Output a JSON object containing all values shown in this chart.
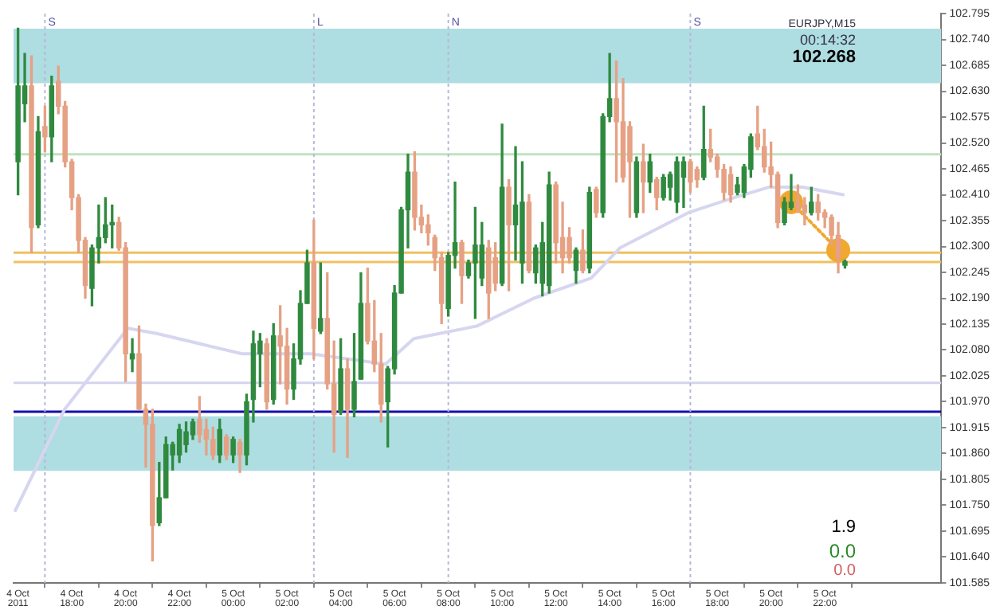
{
  "chart_data": {
    "type": "candlestick",
    "x": [
      "2011-10-04T16:00",
      "2011-10-04T16:15",
      "2011-10-04T16:30",
      "2011-10-04T16:45",
      "2011-10-04T17:00",
      "2011-10-04T17:15",
      "2011-10-04T17:30",
      "2011-10-04T17:45",
      "2011-10-04T18:00",
      "2011-10-04T18:15",
      "2011-10-04T18:30",
      "2011-10-04T18:45",
      "2011-10-04T19:00",
      "2011-10-04T19:15",
      "2011-10-04T19:30",
      "2011-10-04T19:45",
      "2011-10-04T20:00",
      "2011-10-04T20:15",
      "2011-10-04T20:30",
      "2011-10-04T20:45",
      "2011-10-04T21:00",
      "2011-10-04T21:15",
      "2011-10-04T21:30",
      "2011-10-04T21:45",
      "2011-10-04T22:00",
      "2011-10-04T22:15",
      "2011-10-04T22:30",
      "2011-10-04T22:45",
      "2011-10-04T23:00",
      "2011-10-04T23:15",
      "2011-10-04T23:30",
      "2011-10-04T23:45",
      "2011-10-05T00:00",
      "2011-10-05T00:15",
      "2011-10-05T00:30",
      "2011-10-05T00:45",
      "2011-10-05T01:00",
      "2011-10-05T01:15",
      "2011-10-05T01:30",
      "2011-10-05T01:45",
      "2011-10-05T02:00",
      "2011-10-05T02:15",
      "2011-10-05T02:30",
      "2011-10-05T02:45",
      "2011-10-05T03:00",
      "2011-10-05T03:15",
      "2011-10-05T03:30",
      "2011-10-05T03:45",
      "2011-10-05T04:00",
      "2011-10-05T04:15",
      "2011-10-05T04:30",
      "2011-10-05T04:45",
      "2011-10-05T05:00",
      "2011-10-05T05:15",
      "2011-10-05T05:30",
      "2011-10-05T05:45",
      "2011-10-05T06:00",
      "2011-10-05T06:15",
      "2011-10-05T06:30",
      "2011-10-05T06:45",
      "2011-10-05T07:00",
      "2011-10-05T07:15",
      "2011-10-05T07:30",
      "2011-10-05T07:45",
      "2011-10-05T08:00",
      "2011-10-05T08:15",
      "2011-10-05T08:30",
      "2011-10-05T08:45",
      "2011-10-05T09:00",
      "2011-10-05T09:15",
      "2011-10-05T09:30",
      "2011-10-05T09:45",
      "2011-10-05T10:00",
      "2011-10-05T10:15",
      "2011-10-05T10:30",
      "2011-10-05T10:45",
      "2011-10-05T11:00",
      "2011-10-05T11:15",
      "2011-10-05T11:30",
      "2011-10-05T11:45",
      "2011-10-05T12:00",
      "2011-10-05T12:15",
      "2011-10-05T12:30",
      "2011-10-05T12:45",
      "2011-10-05T13:00",
      "2011-10-05T13:15",
      "2011-10-05T13:30",
      "2011-10-05T13:45",
      "2011-10-05T14:00",
      "2011-10-05T14:15",
      "2011-10-05T14:30",
      "2011-10-05T14:45",
      "2011-10-05T15:00",
      "2011-10-05T15:15",
      "2011-10-05T15:30",
      "2011-10-05T15:45",
      "2011-10-05T16:00",
      "2011-10-05T16:15",
      "2011-10-05T16:30",
      "2011-10-05T16:45",
      "2011-10-05T17:00",
      "2011-10-05T17:15",
      "2011-10-05T17:30",
      "2011-10-05T17:45",
      "2011-10-05T18:00",
      "2011-10-05T18:15",
      "2011-10-05T18:30",
      "2011-10-05T18:45",
      "2011-10-05T19:00",
      "2011-10-05T19:15",
      "2011-10-05T19:30",
      "2011-10-05T19:45",
      "2011-10-05T20:00",
      "2011-10-05T20:15",
      "2011-10-05T20:30",
      "2011-10-05T20:45",
      "2011-10-05T21:00",
      "2011-10-05T21:15",
      "2011-10-05T21:30",
      "2011-10-05T21:45",
      "2011-10-05T22:00",
      "2011-10-05T22:15",
      "2011-10-05T22:30",
      "2011-10-05T22:45"
    ],
    "ohlc": [
      [
        102.48,
        102.764,
        102.41,
        102.641
      ],
      [
        102.603,
        102.71,
        102.565,
        102.641
      ],
      [
        102.641,
        102.705,
        102.287,
        102.34
      ],
      [
        102.346,
        102.576,
        102.34,
        102.544
      ],
      [
        102.555,
        102.598,
        102.501,
        102.533
      ],
      [
        102.533,
        102.662,
        102.48,
        102.641
      ],
      [
        102.651,
        102.683,
        102.582,
        102.598
      ],
      [
        102.598,
        102.608,
        102.469,
        102.48
      ],
      [
        102.48,
        102.485,
        102.378,
        102.404
      ],
      [
        102.404,
        102.41,
        102.287,
        102.313
      ],
      [
        102.313,
        102.319,
        102.19,
        102.217
      ],
      [
        102.211,
        102.303,
        102.174,
        102.297
      ],
      [
        102.297,
        102.388,
        102.265,
        102.319
      ],
      [
        102.319,
        102.404,
        102.308,
        102.346
      ],
      [
        102.346,
        102.388,
        102.297,
        102.351
      ],
      [
        102.351,
        102.362,
        102.292,
        102.297
      ],
      [
        102.297,
        102.308,
        102.013,
        102.072
      ],
      [
        102.061,
        102.104,
        102.034,
        102.072
      ],
      [
        102.072,
        102.131,
        101.954,
        101.954
      ],
      [
        101.954,
        101.965,
        101.831,
        101.922
      ],
      [
        101.922,
        101.954,
        101.632,
        101.707
      ],
      [
        101.713,
        101.841,
        101.707,
        101.766
      ],
      [
        101.766,
        101.895,
        101.766,
        101.879
      ],
      [
        101.857,
        101.884,
        101.825,
        101.879
      ],
      [
        101.857,
        101.922,
        101.841,
        101.911
      ],
      [
        101.879,
        101.927,
        101.863,
        101.906
      ],
      [
        101.9,
        101.933,
        101.89,
        101.927
      ],
      [
        101.933,
        101.981,
        101.884,
        101.9
      ],
      [
        101.911,
        101.933,
        101.857,
        101.89
      ],
      [
        101.89,
        101.916,
        101.847,
        101.857
      ],
      [
        101.857,
        101.933,
        101.841,
        101.911
      ],
      [
        101.895,
        101.9,
        101.847,
        101.857
      ],
      [
        101.857,
        101.895,
        101.841,
        101.89
      ],
      [
        101.884,
        101.89,
        101.82,
        101.857
      ],
      [
        101.857,
        101.986,
        101.836,
        101.97
      ],
      [
        101.975,
        102.12,
        101.927,
        102.093
      ],
      [
        102.072,
        102.115,
        102.002,
        102.099
      ],
      [
        102.093,
        102.104,
        101.954,
        101.97
      ],
      [
        101.975,
        102.136,
        101.965,
        102.11
      ],
      [
        102.11,
        102.174,
        102.008,
        102.088
      ],
      [
        102.088,
        102.126,
        101.965,
        101.997
      ],
      [
        101.997,
        102.093,
        101.975,
        102.061
      ],
      [
        102.061,
        102.206,
        102.05,
        102.179
      ],
      [
        102.179,
        102.292,
        102.179,
        102.265
      ],
      [
        102.265,
        102.356,
        102.061,
        102.126
      ],
      [
        102.12,
        102.265,
        102.115,
        102.147
      ],
      [
        102.147,
        102.244,
        101.997,
        102.008
      ],
      [
        102.008,
        102.099,
        101.863,
        101.943
      ],
      [
        101.949,
        102.104,
        101.943,
        102.04
      ],
      [
        102.04,
        102.061,
        101.852,
        101.954
      ],
      [
        101.954,
        102.115,
        101.938,
        102.013
      ],
      [
        102.018,
        102.244,
        102.018,
        102.179
      ],
      [
        102.179,
        102.254,
        102.093,
        102.099
      ],
      [
        102.099,
        102.185,
        102.034,
        102.05
      ],
      [
        102.05,
        102.115,
        101.927,
        101.965
      ],
      [
        101.97,
        102.045,
        101.874,
        102.04
      ],
      [
        102.04,
        102.217,
        102.029,
        102.201
      ],
      [
        102.201,
        102.383,
        102.201,
        102.378
      ],
      [
        102.378,
        102.496,
        102.297,
        102.458
      ],
      [
        102.458,
        102.501,
        102.335,
        102.362
      ],
      [
        102.362,
        102.388,
        102.329,
        102.346
      ],
      [
        102.346,
        102.367,
        102.303,
        102.329
      ],
      [
        102.319,
        102.324,
        102.249,
        102.276
      ],
      [
        102.276,
        102.287,
        102.136,
        102.179
      ],
      [
        102.168,
        102.287,
        102.152,
        102.281
      ],
      [
        102.281,
        102.437,
        102.254,
        102.308
      ],
      [
        102.308,
        102.313,
        102.179,
        102.238
      ],
      [
        102.238,
        102.271,
        102.233,
        102.265
      ],
      [
        102.265,
        102.383,
        102.147,
        102.303
      ],
      [
        102.233,
        102.351,
        102.217,
        102.303
      ],
      [
        102.297,
        102.313,
        102.147,
        102.201
      ],
      [
        102.276,
        102.308,
        102.206,
        102.222
      ],
      [
        102.222,
        102.56,
        102.217,
        102.426
      ],
      [
        102.426,
        102.442,
        102.206,
        102.346
      ],
      [
        102.346,
        102.512,
        102.271,
        102.388
      ],
      [
        102.265,
        102.48,
        102.222,
        102.394
      ],
      [
        102.394,
        102.41,
        102.244,
        102.249
      ],
      [
        102.244,
        102.303,
        102.222,
        102.297
      ],
      [
        102.222,
        102.351,
        102.195,
        102.308
      ],
      [
        102.217,
        102.458,
        102.201,
        102.431
      ],
      [
        102.431,
        102.437,
        102.265,
        102.308
      ],
      [
        102.319,
        102.394,
        102.244,
        102.276
      ],
      [
        102.319,
        102.34,
        102.265,
        102.276
      ],
      [
        102.249,
        102.297,
        102.222,
        102.292
      ],
      [
        102.292,
        102.335,
        102.244,
        102.249
      ],
      [
        102.254,
        102.426,
        102.244,
        102.415
      ],
      [
        102.421,
        102.426,
        102.362,
        102.372
      ],
      [
        102.372,
        102.582,
        102.362,
        102.576
      ],
      [
        102.576,
        102.71,
        102.565,
        102.614
      ],
      [
        102.614,
        102.694,
        102.437,
        102.565
      ],
      [
        102.565,
        102.657,
        102.437,
        102.447
      ],
      [
        102.555,
        102.565,
        102.362,
        102.48
      ],
      [
        102.372,
        102.49,
        102.362,
        102.48
      ],
      [
        102.48,
        102.517,
        102.372,
        102.437
      ],
      [
        102.437,
        102.496,
        102.415,
        102.48
      ],
      [
        102.442,
        102.447,
        102.378,
        102.404
      ],
      [
        102.404,
        102.453,
        102.399,
        102.447
      ],
      [
        102.426,
        102.458,
        102.399,
        102.453
      ],
      [
        102.394,
        102.49,
        102.372,
        102.48
      ],
      [
        102.447,
        102.49,
        102.383,
        102.48
      ],
      [
        102.48,
        102.485,
        102.415,
        102.437
      ],
      [
        102.464,
        102.469,
        102.426,
        102.442
      ],
      [
        102.447,
        102.598,
        102.442,
        102.506
      ],
      [
        102.506,
        102.549,
        102.48,
        102.49
      ],
      [
        102.49,
        102.496,
        102.447,
        102.464
      ],
      [
        102.464,
        102.474,
        102.399,
        102.415
      ],
      [
        102.453,
        102.469,
        102.394,
        102.41
      ],
      [
        102.415,
        102.447,
        102.41,
        102.431
      ],
      [
        102.415,
        102.474,
        102.404,
        102.469
      ],
      [
        102.464,
        102.539,
        102.447,
        102.533
      ],
      [
        102.539,
        102.598,
        102.506,
        102.512
      ],
      [
        102.512,
        102.549,
        102.458,
        102.469
      ],
      [
        102.469,
        102.522,
        102.426,
        102.453
      ],
      [
        102.453,
        102.458,
        102.34,
        102.351
      ],
      [
        102.351,
        102.404,
        102.346,
        102.394
      ],
      [
        102.383,
        102.453,
        102.378,
        102.394
      ],
      [
        102.394,
        102.431,
        102.372,
        102.383
      ],
      [
        102.388,
        102.404,
        102.346,
        102.372
      ],
      [
        102.372,
        102.426,
        102.367,
        102.394
      ],
      [
        102.394,
        102.41,
        102.356,
        102.372
      ],
      [
        102.372,
        102.378,
        102.34,
        102.362
      ],
      [
        102.362,
        102.367,
        102.303,
        102.324
      ],
      [
        102.324,
        102.351,
        102.244,
        102.276
      ],
      [
        102.26,
        102.271,
        102.254,
        102.268
      ]
    ],
    "colors": [
      "#2f8a3f",
      "#2f8a3f",
      "#e6a184",
      "#2f8a3f",
      "#e6a184",
      "#2f8a3f",
      "#e6a184",
      "#e6a184",
      "#e6a184",
      "#e6a184",
      "#e6a184",
      "#2f8a3f",
      "#2f8a3f",
      "#2f8a3f",
      "#2f8a3f",
      "#e6a184",
      "#e6a184",
      "#2f8a3f",
      "#e6a184",
      "#e6a184",
      "#e6a184",
      "#2f8a3f",
      "#2f8a3f",
      "#2f8a3f",
      "#2f8a3f",
      "#2f8a3f",
      "#2f8a3f",
      "#e6a184",
      "#e6a184",
      "#e6a184",
      "#2f8a3f",
      "#e6a184",
      "#2f8a3f",
      "#e6a184",
      "#2f8a3f",
      "#2f8a3f",
      "#2f8a3f",
      "#e6a184",
      "#2f8a3f",
      "#e6a184",
      "#e6a184",
      "#2f8a3f",
      "#2f8a3f",
      "#2f8a3f",
      "#e6a184",
      "#2f8a3f",
      "#e6a184",
      "#e6a184",
      "#2f8a3f",
      "#e6a184",
      "#2f8a3f",
      "#2f8a3f",
      "#e6a184",
      "#e6a184",
      "#e6a184",
      "#2f8a3f",
      "#2f8a3f",
      "#2f8a3f",
      "#2f8a3f",
      "#e6a184",
      "#e6a184",
      "#e6a184",
      "#e6a184",
      "#e6a184",
      "#2f8a3f",
      "#2f8a3f",
      "#e6a184",
      "#2f8a3f",
      "#2f8a3f",
      "#2f8a3f",
      "#e6a184",
      "#e6a184",
      "#2f8a3f",
      "#e6a184",
      "#2f8a3f",
      "#2f8a3f",
      "#e6a184",
      "#2f8a3f",
      "#2f8a3f",
      "#2f8a3f",
      "#e6a184",
      "#e6a184",
      "#e6a184",
      "#2f8a3f",
      "#e6a184",
      "#2f8a3f",
      "#e6a184",
      "#2f8a3f",
      "#2f8a3f",
      "#e6a184",
      "#e6a184",
      "#e6a184",
      "#2f8a3f",
      "#e6a184",
      "#2f8a3f",
      "#e6a184",
      "#2f8a3f",
      "#2f8a3f",
      "#2f8a3f",
      "#2f8a3f",
      "#e6a184",
      "#e6a184",
      "#2f8a3f",
      "#e6a184",
      "#e6a184",
      "#e6a184",
      "#e6a184",
      "#2f8a3f",
      "#2f8a3f",
      "#2f8a3f",
      "#e6a184",
      "#e6a184",
      "#e6a184",
      "#e6a184",
      "#2f8a3f",
      "#2f8a3f",
      "#e6a184",
      "#e6a184",
      "#2f8a3f",
      "#e6a184",
      "#e6a184",
      "#e6a184",
      "#e6a184",
      "#2f8a3f"
    ],
    "series": [
      {
        "type": "line",
        "color": "#d6d6f0",
        "marker": "none",
        "x": [
          "2011-10-04T15:54",
          "2011-10-04T17:44",
          "2011-10-04T20:05",
          "2011-10-04T21:09",
          "2011-10-05T00:20",
          "2011-10-05T02:53",
          "2011-10-05T05:40",
          "2011-10-05T06:43",
          "2011-10-05T09:04",
          "2011-10-05T11:11",
          "2011-10-05T13:19",
          "2011-10-05T14:23",
          "2011-10-05T16:56",
          "2011-10-05T18:38",
          "2011-10-05T19:55",
          "2011-10-05T21:11",
          "2011-10-05T22:41"
        ],
        "values": [
          101.739,
          101.954,
          102.126,
          102.115,
          102.072,
          102.072,
          102.05,
          102.104,
          102.131,
          102.19,
          102.233,
          102.297,
          102.372,
          102.404,
          102.426,
          102.426,
          102.41
        ]
      },
      {
        "type": "line",
        "color": "#f0a830",
        "marker": "circle",
        "line_style": "dotted",
        "x": [
          "2011-10-05T20:45",
          "2011-10-05T22:30"
        ],
        "values": [
          102.394,
          102.292
        ]
      }
    ],
    "xlim": [
      "2011-10-04T15:50",
      "2011-10-06T02:20"
    ],
    "xticks": [
      {
        "value": "2011-10-04T16:00",
        "label": "4 Oct 2011"
      },
      {
        "value": "2011-10-04T18:00",
        "label": "4 Oct 18:00"
      },
      {
        "value": "2011-10-04T20:00",
        "label": "4 Oct 20:00"
      },
      {
        "value": "2011-10-04T22:00",
        "label": "4 Oct 22:00"
      },
      {
        "value": "2011-10-05T00:00",
        "label": "5 Oct 00:00"
      },
      {
        "value": "2011-10-05T02:00",
        "label": "5 Oct 02:00"
      },
      {
        "value": "2011-10-05T04:00",
        "label": "5 Oct 04:00"
      },
      {
        "value": "2011-10-05T06:00",
        "label": "5 Oct 06:00"
      },
      {
        "value": "2011-10-05T08:00",
        "label": "5 Oct 08:00"
      },
      {
        "value": "2011-10-05T10:00",
        "label": "5 Oct 10:00"
      },
      {
        "value": "2011-10-05T12:00",
        "label": "5 Oct 12:00"
      },
      {
        "value": "2011-10-05T14:00",
        "label": "5 Oct 14:00"
      },
      {
        "value": "2011-10-05T16:00",
        "label": "5 Oct 16:00"
      },
      {
        "value": "2011-10-05T18:00",
        "label": "5 Oct 18:00"
      },
      {
        "value": "2011-10-05T20:00",
        "label": "5 Oct 20:00"
      },
      {
        "value": "2011-10-05T22:00",
        "label": "5 Oct 22:00"
      }
    ],
    "ylim": [
      101.585,
      102.795
    ],
    "yticks": [
      102.795,
      {
        "value": 102.74,
        "label": "102.740"
      },
      102.685,
      {
        "value": 102.63,
        "label": "102.630"
      },
      102.575,
      {
        "value": 102.52,
        "label": "102.520"
      },
      102.465,
      {
        "value": 102.41,
        "label": "102.410"
      },
      102.355,
      {
        "value": 102.3,
        "label": "102.300"
      },
      102.245,
      {
        "value": 102.19,
        "label": "102.190"
      },
      102.135,
      {
        "value": 102.08,
        "label": "102.080"
      },
      102.025,
      {
        "value": 101.97,
        "label": "101.970"
      },
      101.915,
      {
        "value": 101.86,
        "label": "101.860"
      },
      101.805,
      {
        "value": 101.75,
        "label": "101.750"
      },
      101.695,
      {
        "value": 101.64,
        "label": "101.640"
      },
      101.585
    ],
    "bands": [
      {
        "axis": "y",
        "from": 102.647,
        "to": 102.763,
        "color": "#aedde2"
      },
      {
        "axis": "y",
        "from": 101.823,
        "to": 101.939,
        "color": "#aedde2"
      }
    ],
    "ref_lines": [
      {
        "axis": "y",
        "value": 102.496,
        "color": "#bfe3bf"
      },
      {
        "axis": "y",
        "value": 102.01,
        "color": "#d4d4ee"
      },
      {
        "axis": "y",
        "value": 101.949,
        "color": "#1010b0"
      },
      {
        "axis": "y",
        "value": 102.287,
        "color": "#f0c060"
      },
      {
        "axis": "y",
        "value": 102.267,
        "color": "#f0c060"
      },
      {
        "axis": "x",
        "value": "2011-10-04T17:00",
        "label": "S",
        "color": "#b8b8d8",
        "line_style": "dotted"
      },
      {
        "axis": "x",
        "value": "2011-10-05T03:00",
        "label": "L",
        "color": "#b8b8d8",
        "line_style": "dotted"
      },
      {
        "axis": "x",
        "value": "2011-10-05T08:00",
        "label": "N",
        "color": "#b8b8d8",
        "line_style": "dotted"
      },
      {
        "axis": "x",
        "value": "2011-10-05T17:00",
        "label": "S",
        "color": "#b8b8d8",
        "line_style": "dotted"
      }
    ],
    "annotations": [
      "EURJPY,M15",
      "00:14:32",
      "102.268",
      "1.9",
      "0.0",
      "0.0"
    ]
  }
}
